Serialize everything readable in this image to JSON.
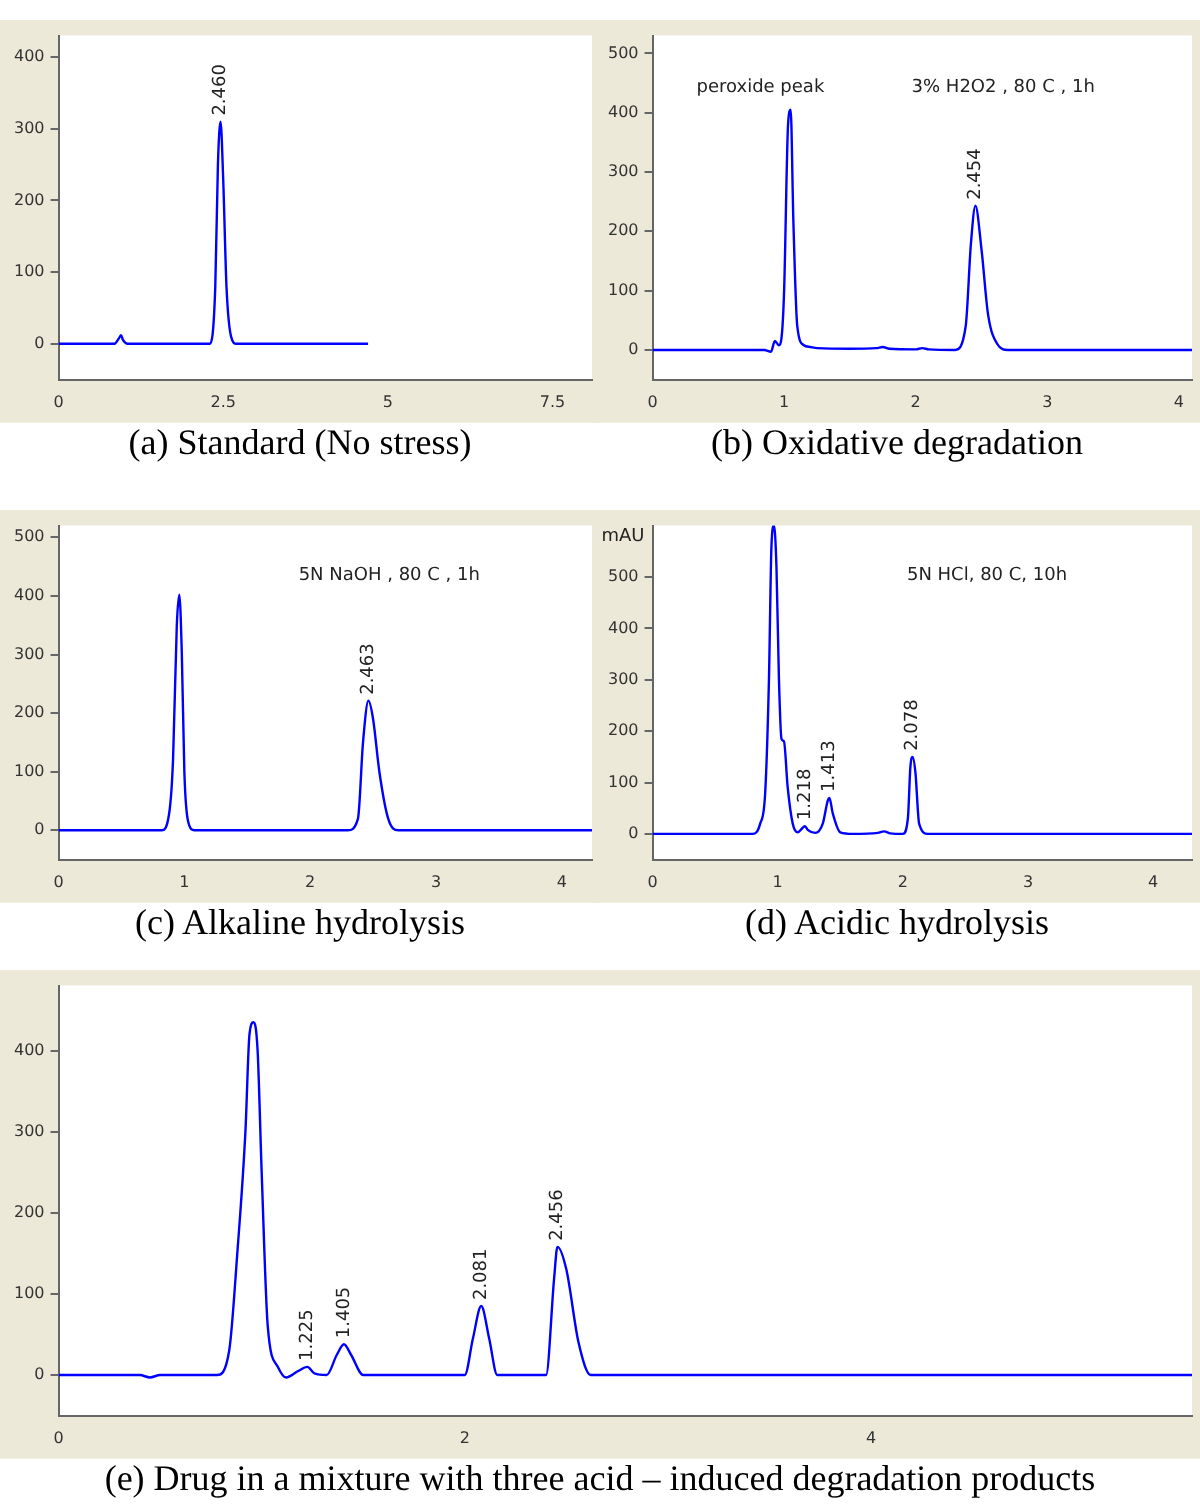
{
  "chart_data": [
    {
      "type": "line",
      "title": "(a) Standard (No stress)",
      "marker": "none",
      "legend": false,
      "grid": false,
      "series": [
        {
          "color": "#0000ff",
          "x": [
            0,
            0.85,
            0.92,
            0.95,
            0.98,
            1.05,
            1.2,
            2.3,
            2.38,
            2.42,
            2.46,
            2.5,
            2.55,
            2.62,
            2.7,
            4.7
          ],
          "values": [
            0,
            0,
            8,
            12,
            5,
            0,
            0,
            0,
            80,
            250,
            310,
            230,
            80,
            10,
            0,
            0
          ]
        }
      ],
      "xlim": [
        0,
        8.1
      ],
      "xticks": [
        0,
        2.5,
        5,
        7.5
      ],
      "ylim": [
        -50,
        430
      ],
      "yticks": [
        0,
        100,
        200,
        300,
        400
      ],
      "annotations": [
        {
          "text": "2.460",
          "x": 2.46,
          "y": 310
        }
      ]
    },
    {
      "type": "line",
      "title": "(b) Oxidative degradation",
      "marker": "none",
      "legend": false,
      "grid": false,
      "series": [
        {
          "color": "#0000ff",
          "x": [
            0,
            0.85,
            0.9,
            0.93,
            0.96,
            0.98,
            1.0,
            1.03,
            1.05,
            1.07,
            1.1,
            1.15,
            1.2,
            1.25,
            1.5,
            1.7,
            1.75,
            1.8,
            2.0,
            2.05,
            2.1,
            2.3,
            2.38,
            2.42,
            2.454,
            2.5,
            2.55,
            2.62,
            2.7,
            4.1
          ],
          "values": [
            0,
            0,
            -3,
            15,
            8,
            20,
            100,
            380,
            405,
            220,
            40,
            8,
            5,
            3,
            2,
            3,
            5,
            2,
            1,
            3,
            1,
            0,
            40,
            180,
            243,
            170,
            60,
            10,
            0,
            0
          ]
        }
      ],
      "xlim": [
        0,
        4.1
      ],
      "xticks": [
        0,
        1,
        2,
        3,
        4
      ],
      "ylim": [
        -50,
        530
      ],
      "yticks": [
        0,
        100,
        200,
        300,
        400,
        500
      ],
      "annotations": [
        "peroxide peak",
        "3% H2O2 , 80 C , 1h",
        {
          "text": "2.454",
          "x": 2.454,
          "y": 243
        }
      ]
    },
    {
      "type": "line",
      "title": "(c) Alkaline hydrolysis",
      "marker": "none",
      "legend": false,
      "grid": false,
      "series": [
        {
          "color": "#0000ff",
          "x": [
            0,
            0.82,
            0.88,
            0.91,
            0.94,
            0.96,
            0.98,
            1.0,
            1.03,
            1.08,
            2.3,
            2.38,
            2.42,
            2.463,
            2.5,
            2.55,
            2.62,
            2.7,
            4.24
          ],
          "values": [
            0,
            0,
            30,
            120,
            350,
            402,
            300,
            100,
            15,
            0,
            0,
            20,
            150,
            221,
            190,
            100,
            20,
            0,
            0
          ]
        }
      ],
      "xlim": [
        0,
        4.24
      ],
      "xticks": [
        0,
        1,
        2,
        3,
        4
      ],
      "ylim": [
        -50,
        520
      ],
      "yticks": [
        0,
        100,
        200,
        300,
        400,
        500
      ],
      "annotations": [
        "5N NaOH , 80 C , 1h",
        {
          "text": "2.463",
          "x": 2.463,
          "y": 221
        }
      ]
    },
    {
      "type": "line",
      "title": "(d) Acidic hydrolysis",
      "ylabel": "mAU",
      "marker": "none",
      "legend": false,
      "grid": false,
      "series": [
        {
          "color": "#0000ff",
          "x": [
            0,
            0.8,
            0.86,
            0.9,
            0.93,
            0.95,
            0.97,
            0.99,
            1.01,
            1.03,
            1.05,
            1.08,
            1.12,
            1.16,
            1.2,
            1.218,
            1.24,
            1.3,
            1.36,
            1.4,
            1.413,
            1.44,
            1.5,
            1.6,
            1.8,
            1.85,
            1.9,
            2.0,
            2.04,
            2.06,
            2.078,
            2.1,
            2.13,
            2.2,
            4.31
          ],
          "values": [
            0,
            0,
            20,
            80,
            300,
            560,
            600,
            520,
            300,
            185,
            180,
            90,
            20,
            3,
            12,
            15,
            8,
            2,
            20,
            65,
            70,
            40,
            3,
            0,
            2,
            5,
            1,
            0,
            30,
            130,
            150,
            120,
            20,
            0,
            0
          ]
        }
      ],
      "xlim": [
        0,
        4.31
      ],
      "xticks": [
        0,
        1,
        2,
        3,
        4
      ],
      "ylim": [
        -50,
        600
      ],
      "yticks": [
        0,
        100,
        200,
        300,
        400,
        500
      ],
      "annotations": [
        "5N HCl, 80 C, 10h",
        {
          "text": "1.218",
          "x": 1.218,
          "y": 15
        },
        {
          "text": "1.413",
          "x": 1.413,
          "y": 70
        },
        {
          "text": "2.078",
          "x": 2.078,
          "y": 150
        }
      ]
    },
    {
      "type": "line",
      "title": "(e) Drug in a mixture with three acid – induced degradation products",
      "marker": "none",
      "legend": false,
      "grid": false,
      "series": [
        {
          "color": "#0000ff",
          "x": [
            0,
            0.4,
            0.45,
            0.5,
            0.78,
            0.84,
            0.88,
            0.92,
            0.94,
            0.96,
            0.98,
            1.0,
            1.03,
            1.08,
            1.12,
            1.18,
            1.225,
            1.26,
            1.32,
            1.37,
            1.405,
            1.44,
            1.5,
            1.8,
            2.0,
            2.04,
            2.081,
            2.12,
            2.16,
            2.4,
            2.44,
            2.456,
            2.5,
            2.56,
            2.62,
            2.8,
            5.58
          ],
          "values": [
            0,
            0,
            -3,
            0,
            0,
            30,
            150,
            300,
            420,
            435,
            400,
            250,
            60,
            10,
            -3,
            5,
            10,
            2,
            0,
            25,
            38,
            25,
            0,
            0,
            0,
            45,
            85,
            45,
            0,
            0,
            120,
            158,
            130,
            40,
            0,
            0,
            0
          ]
        }
      ],
      "xlim": [
        0,
        5.58
      ],
      "xticks": [
        0,
        2,
        4
      ],
      "ylim": [
        -50,
        480
      ],
      "yticks": [
        0,
        100,
        200,
        300,
        400
      ],
      "annotations": [
        {
          "text": "1.225",
          "x": 1.225,
          "y": 10
        },
        {
          "text": "1.405",
          "x": 1.405,
          "y": 38
        },
        {
          "text": "2.081",
          "x": 2.081,
          "y": 85
        },
        {
          "text": "2.456",
          "x": 2.456,
          "y": 158
        }
      ]
    }
  ]
}
